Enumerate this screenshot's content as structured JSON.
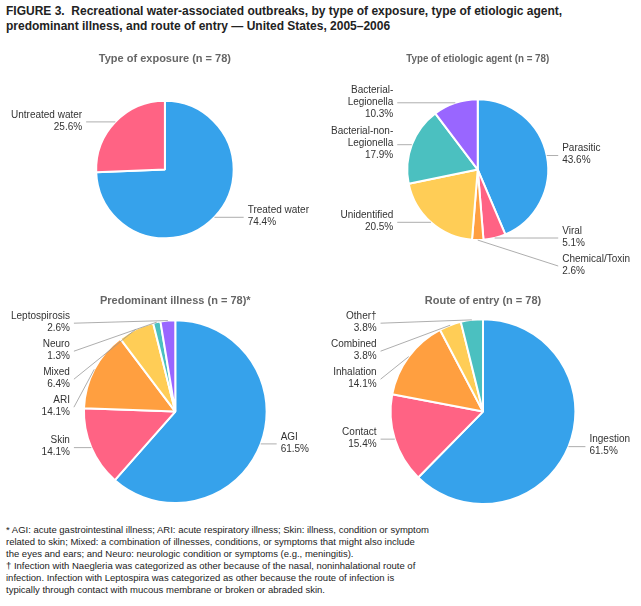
{
  "title": "FIGURE 3.  Recreational water-associated outbreaks, by type of exposure, type of etiologic agent, predominant illness, and route of entry — United States, 2005–2006",
  "annotations": [
    "* AGI: acute gastrointestinal illness; ARI: acute respiratory illness; Skin: illness, condition or symptom\nrelated to skin; Mixed: a combination of illnesses, conditions, or symptoms that might also include\nthe eyes and ears; and Neuro: neurologic condition or symptoms (e.g., meningitis).",
    "† Infection with Naegleria was categorized as other because of the nasal, noninhalational route of\ninfection. Infection with Leptospira was categorized as other because the route of infection is\ntypically through contact with mucous membrane or broken or abraded skin."
  ],
  "chart_data": [
    {
      "type": "pie",
      "title": "Type of exposure (n = 78)",
      "categories": [
        "Treated water",
        "Untreated water"
      ],
      "values": [
        74.4,
        25.6
      ],
      "value_labels": [
        "74.4%",
        "25.6%"
      ],
      "data_labels": true
    },
    {
      "type": "pie",
      "title": "Type of etiologic agent (n = 78)",
      "categories": [
        "Parasitic",
        "Viral",
        "Chemical/Toxin",
        "Unidentified",
        "Bacterial-non-Legionella",
        "Bacterial-Legionella"
      ],
      "values": [
        43.6,
        5.1,
        2.6,
        20.5,
        17.9,
        10.3
      ],
      "value_labels": [
        "43.6%",
        "5.1%",
        "2.6%",
        "20.5%",
        "17.9%",
        "10.3%"
      ],
      "data_labels": true
    },
    {
      "type": "pie",
      "title": "Predominant illness (n = 78)*",
      "categories": [
        "AGI",
        "Skin",
        "ARI",
        "Mixed",
        "Neuro",
        "Leptospirosis"
      ],
      "values": [
        61.5,
        14.1,
        14.1,
        6.4,
        1.3,
        2.6
      ],
      "value_labels": [
        "61.5%",
        "14.1%",
        "14.1%",
        "6.4%",
        "1.3%",
        "2.6%"
      ],
      "data_labels": true
    },
    {
      "type": "pie",
      "title": "Route of entry (n = 78)",
      "categories": [
        "Ingestion",
        "Contact",
        "Inhalation",
        "Combined",
        "Other†"
      ],
      "values": [
        61.5,
        15.4,
        14.1,
        3.8,
        3.8
      ],
      "value_labels": [
        "61.5%",
        "15.4%",
        "14.1%",
        "3.8%",
        "3.8%"
      ],
      "data_labels": true
    }
  ]
}
